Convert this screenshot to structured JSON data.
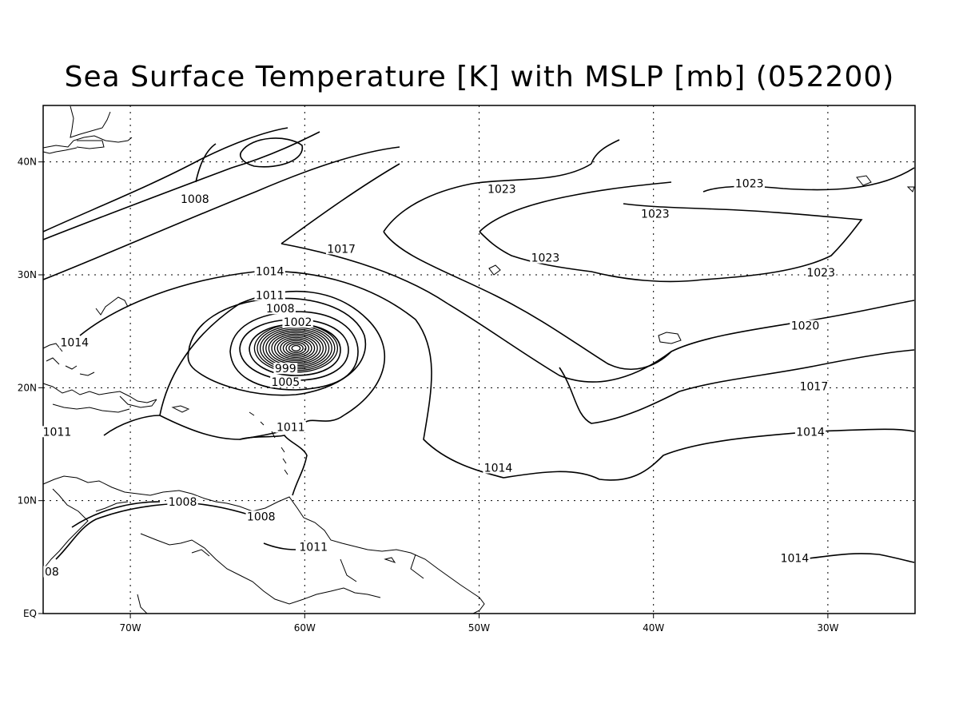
{
  "title": "Sea Surface Temperature [K] with MSLP [mb] (052200)",
  "map": {
    "lon_range": [
      -75,
      -25
    ],
    "lat_range": [
      0,
      45
    ],
    "lon_ticks": [
      {
        "value": -70,
        "label": "70W"
      },
      {
        "value": -60,
        "label": "60W"
      },
      {
        "value": -50,
        "label": "50W"
      },
      {
        "value": -40,
        "label": "40W"
      },
      {
        "value": -30,
        "label": "30W"
      }
    ],
    "lat_ticks": [
      {
        "value": 0,
        "label": "EQ"
      },
      {
        "value": 10,
        "label": "10N"
      },
      {
        "value": 20,
        "label": "20N"
      },
      {
        "value": 30,
        "label": "30N"
      },
      {
        "value": 40,
        "label": "40N"
      }
    ],
    "grid": "dotted",
    "storm_center": {
      "lon": -60.5,
      "lat": 23.5
    },
    "isobar_labels": [
      {
        "text": "1008",
        "lon": -66.3,
        "lat": 36.5
      },
      {
        "text": "1017",
        "lon": -57.9,
        "lat": 32.1
      },
      {
        "text": "1014",
        "lon": -62.0,
        "lat": 30.1
      },
      {
        "text": "1011",
        "lon": -62.0,
        "lat": 28.0
      },
      {
        "text": "1008",
        "lon": -61.4,
        "lat": 26.8
      },
      {
        "text": "1002",
        "lon": -60.4,
        "lat": 25.6
      },
      {
        "text": "999",
        "lon": -61.1,
        "lat": 21.5
      },
      {
        "text": "1005",
        "lon": -61.1,
        "lat": 20.3
      },
      {
        "text": "1014",
        "lon": -73.2,
        "lat": 23.8
      },
      {
        "text": "1011",
        "lon": -74.2,
        "lat": 15.9
      },
      {
        "text": "1011",
        "lon": -60.8,
        "lat": 16.3
      },
      {
        "text": "1008",
        "lon": -67.0,
        "lat": 9.7
      },
      {
        "text": "1008",
        "lon": -62.5,
        "lat": 8.4
      },
      {
        "text": "1011",
        "lon": -59.5,
        "lat": 5.7
      },
      {
        "text": "08",
        "lon": -74.5,
        "lat": 3.5
      },
      {
        "text": "1023",
        "lon": -48.7,
        "lat": 37.4
      },
      {
        "text": "1023",
        "lon": -34.5,
        "lat": 37.9
      },
      {
        "text": "1023",
        "lon": -39.9,
        "lat": 35.2
      },
      {
        "text": "1023",
        "lon": -46.2,
        "lat": 31.3
      },
      {
        "text": "1023",
        "lon": -30.4,
        "lat": 30.0
      },
      {
        "text": "1020",
        "lon": -31.3,
        "lat": 25.3
      },
      {
        "text": "1017",
        "lon": -30.8,
        "lat": 19.9
      },
      {
        "text": "1014",
        "lon": -31.0,
        "lat": 15.9
      },
      {
        "text": "1014",
        "lon": -48.9,
        "lat": 12.7
      },
      {
        "text": "1014",
        "lon": -31.9,
        "lat": 4.7
      }
    ]
  }
}
